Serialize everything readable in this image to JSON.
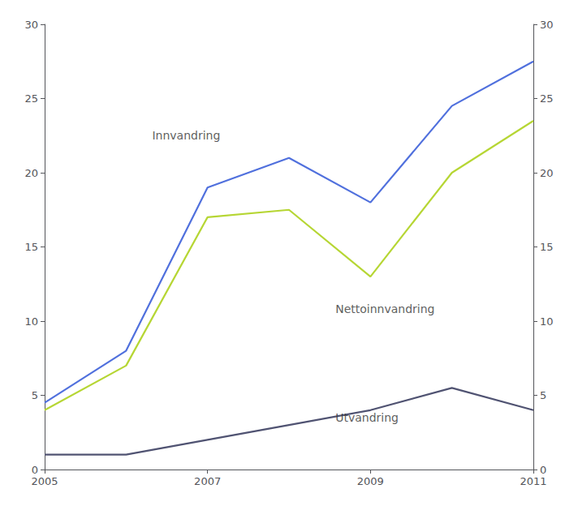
{
  "chart_data": {
    "type": "line",
    "x": [
      2005,
      2006,
      2007,
      2008,
      2009,
      2010,
      2011
    ],
    "series": [
      {
        "values": [
          4.5,
          8.0,
          19.0,
          21.0,
          18.0,
          24.5,
          27.5
        ]
      },
      {
        "values": [
          4.0,
          7.0,
          17.0,
          17.5,
          13.0,
          20.0,
          23.5
        ]
      },
      {
        "values": [
          1.0,
          1.0,
          2.0,
          3.0,
          4.0,
          5.5,
          4.0
        ]
      }
    ],
    "annotations": [
      {
        "text": "Innvandring",
        "x": 2006.3,
        "y": 22.5
      },
      {
        "text": "Nettoinnvandring",
        "x": 2008.55,
        "y": 10.8
      },
      {
        "text": "Utvandring",
        "x": 2008.55,
        "y": 3.5
      }
    ],
    "xlim": [
      2005,
      2011
    ],
    "xticks": [
      2005,
      2007,
      2009,
      2011
    ],
    "ylim": [
      0,
      30
    ],
    "yticks": [
      0,
      5,
      10,
      15,
      20,
      25,
      30
    ],
    "y2lim": [
      0,
      30
    ],
    "y2ticks": [
      0,
      5,
      10,
      15,
      20,
      25,
      30
    ],
    "grid": false
  }
}
